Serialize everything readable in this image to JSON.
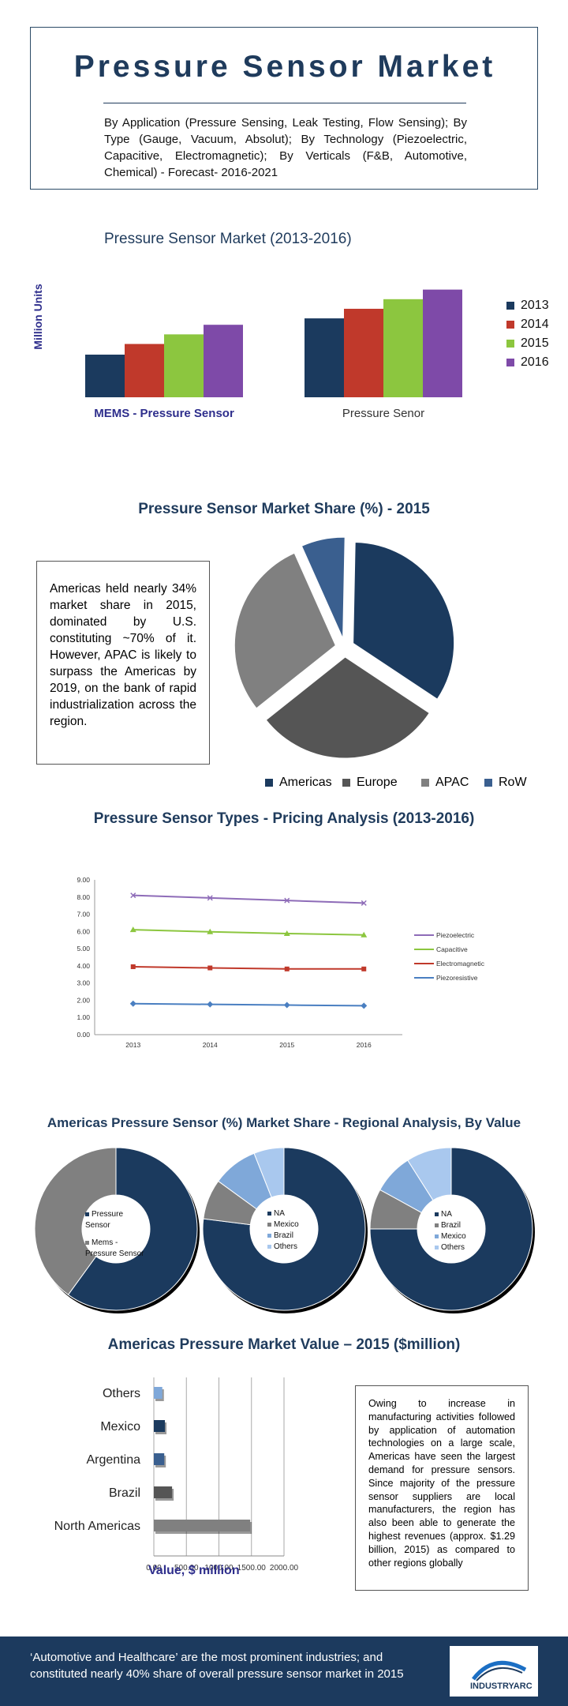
{
  "header": {
    "title": "Pressure Sensor Market",
    "subtitle": "By Application (Pressure Sensing, Leak Testing, Flow Sensing); By Type (Gauge, Vacuum, Absolut); By Technology (Piezoelectric, Capacitive, Electromagnetic); By Verticals (F&B, Automotive, Chemical) - Forecast- 2016-2021"
  },
  "colors": {
    "navy": "#1b3a5e",
    "red": "#c0392b",
    "green": "#8cc63f",
    "purple": "#7e4aa8",
    "gray": "#808080",
    "darkgray": "#555555",
    "steel": "#3a5f8f",
    "lightblue": "#7fa8d9"
  },
  "chart_data": [
    {
      "type": "bar",
      "title": "Pressure Sensor Market (2013-2016)",
      "ylabel": "Million Units",
      "categories": [
        "MEMS - Pressure Sensor",
        "Pressure Senor"
      ],
      "series": [
        {
          "name": "2013",
          "values": [
            40,
            74
          ],
          "color": "#1b3a5e"
        },
        {
          "name": "2014",
          "values": [
            50,
            83
          ],
          "color": "#c0392b"
        },
        {
          "name": "2015",
          "values": [
            59,
            92
          ],
          "color": "#8cc63f"
        },
        {
          "name": "2016",
          "values": [
            68,
            101
          ],
          "color": "#7e4aa8"
        }
      ],
      "legend": "right"
    },
    {
      "type": "pie",
      "title": "Pressure Sensor Market Share (%) - 2015",
      "labels": [
        "Americas",
        "Europe",
        "APAC",
        "RoW"
      ],
      "values": [
        34,
        30,
        29,
        7
      ],
      "colors": [
        "#1b3a5e",
        "#555555",
        "#808080",
        "#3a5f8f"
      ],
      "legend": "bottom"
    },
    {
      "type": "line",
      "title": "Pressure Sensor Types - Pricing Analysis (2013-2016)",
      "x": [
        "2013",
        "2014",
        "2015",
        "2016"
      ],
      "yticks": [
        "0.00",
        "1.00",
        "2.00",
        "3.00",
        "4.00",
        "5.00",
        "6.00",
        "7.00",
        "8.00",
        "9.00"
      ],
      "ylim": [
        0,
        9
      ],
      "series": [
        {
          "name": "Piezoelectric",
          "values": [
            8.1,
            7.95,
            7.8,
            7.65
          ],
          "color": "#8e6cb8",
          "marker": "x"
        },
        {
          "name": "Capacitive",
          "values": [
            6.1,
            5.98,
            5.88,
            5.8
          ],
          "color": "#8cc63f",
          "marker": "triangle"
        },
        {
          "name": "Electromagnetic",
          "values": [
            3.95,
            3.88,
            3.82,
            3.82
          ],
          "color": "#c0392b",
          "marker": "square"
        },
        {
          "name": "Piezoresistive",
          "values": [
            1.8,
            1.76,
            1.72,
            1.68
          ],
          "color": "#4a7fc1",
          "marker": "diamond"
        }
      ],
      "legend": "right"
    },
    {
      "type": "pie",
      "title": "Americas Pressure Sensor (%) Market Share - Regional Analysis, By Value",
      "subtype": "donut",
      "labels": [
        "Pressure Sensor",
        "Mems - Pressure Sensor"
      ],
      "values": [
        60,
        40
      ],
      "colors": [
        "#1b3a5e",
        "#808080"
      ]
    },
    {
      "type": "pie",
      "subtype": "donut",
      "labels": [
        "NA",
        "Mexico",
        "Brazil",
        "Others"
      ],
      "values": [
        77,
        8,
        9,
        6
      ],
      "colors": [
        "#1b3a5e",
        "#808080",
        "#7fa8d9",
        "#a9c8ee"
      ]
    },
    {
      "type": "pie",
      "subtype": "donut",
      "labels": [
        "NA",
        "Brazil",
        "Mexico",
        "Others"
      ],
      "values": [
        75,
        8,
        8,
        9
      ],
      "colors": [
        "#1b3a5e",
        "#808080",
        "#7fa8d9",
        "#a9c8ee"
      ]
    },
    {
      "type": "bar",
      "orientation": "horizontal",
      "title": "Americas Pressure Market Value – 2015 ($million)",
      "xlabel": "Value, $ million",
      "categories": [
        "Others",
        "Mexico",
        "Argentina",
        "Brazil",
        "North Americas"
      ],
      "values": [
        130,
        170,
        160,
        280,
        1480
      ],
      "colors": [
        "#7fa8d9",
        "#1b3a5e",
        "#3a5f8f",
        "#555555",
        "#808080"
      ],
      "xticks": [
        "0.00",
        "500.00",
        "1000.00",
        "1500.00",
        "2000.00"
      ],
      "xlim": [
        0,
        2000
      ]
    }
  ],
  "callout_share": "Americas held nearly 34% market share in 2015, dominated by U.S. constituting ~70% of it. However, APAC is likely to surpass the Americas by 2019, on the bank of rapid industrialization across the region.",
  "callout_value": "Owing to increase in manufacturing activities followed by application of automation technologies on a large scale, Americas have seen the largest demand for pressure sensors. Since majority of the pressure sensor suppliers are local manufacturers, the region has also been able to generate the highest revenues (approx. $1.29 billion, 2015) as compared to other regions globally",
  "footer": {
    "text": "‘Automotive and Healthcare’ are the most prominent industries; and constituted nearly 40% share of overall pressure sensor market in 2015",
    "logo_text": "INDUSTRYARC"
  }
}
